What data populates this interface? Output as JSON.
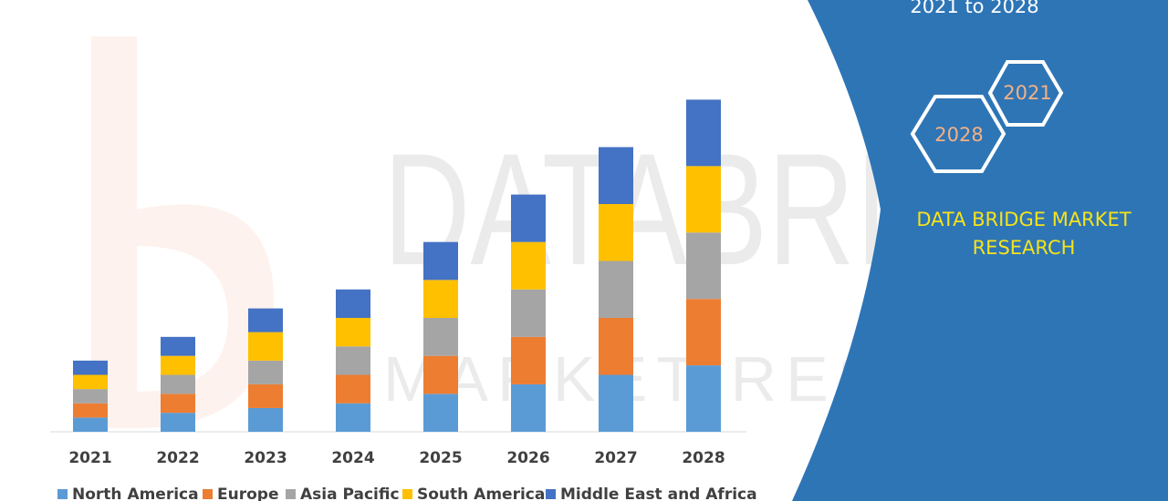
{
  "side_panel": {
    "period": "2021 to 2028",
    "hex_start": "2021",
    "hex_end": "2028",
    "brand_line1": "DATA BRIDGE MARKET",
    "brand_line2": "RESEARCH",
    "panel_color": "#2e75b6",
    "brand_color": "#f5e31b"
  },
  "watermark": {
    "word1": "DATABRIDGE",
    "word2": "MARKET RESEARCH"
  },
  "chart_data": {
    "type": "bar",
    "stacked": true,
    "categories": [
      "2021",
      "2022",
      "2023",
      "2024",
      "2025",
      "2026",
      "2027",
      "2028"
    ],
    "series": [
      {
        "name": "North America",
        "color": "#5b9bd5",
        "values": [
          3,
          4,
          5,
          6,
          8,
          10,
          12,
          14
        ]
      },
      {
        "name": "Europe",
        "color": "#ed7d31",
        "values": [
          3,
          4,
          5,
          6,
          8,
          10,
          12,
          14
        ]
      },
      {
        "name": "Asia Pacific",
        "color": "#a5a5a5",
        "values": [
          3,
          4,
          5,
          6,
          8,
          10,
          12,
          14
        ]
      },
      {
        "name": "South America",
        "color": "#ffc000",
        "values": [
          3,
          4,
          6,
          6,
          8,
          10,
          12,
          14
        ]
      },
      {
        "name": "Middle East and Africa",
        "color": "#4472c4",
        "values": [
          3,
          4,
          5,
          6,
          8,
          10,
          12,
          14
        ]
      }
    ],
    "ylim": [
      0,
      72
    ],
    "grid": false,
    "legend": "bottom"
  }
}
